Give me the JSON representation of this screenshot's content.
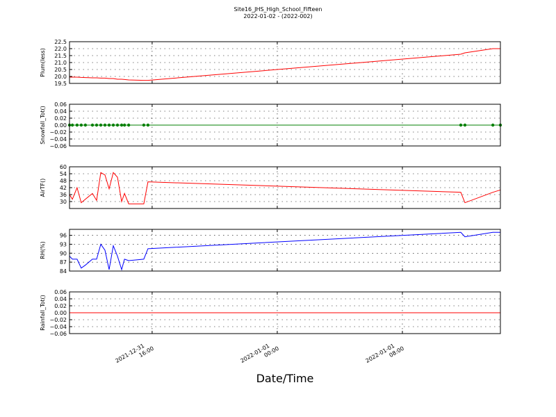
{
  "chart_data": [
    {
      "type": "line",
      "title": "Site16_JHS_High_School_Fifteen",
      "subtitle": "2022-01-02 - (2022-002)",
      "ylabel": "Plum(less)",
      "color": "#ff0000",
      "grid": true,
      "x": [
        "2021-12-31 10:43",
        "2021-12-31 10:54",
        "2021-12-31 11:12",
        "2021-12-31 11:28",
        "2021-12-31 11:44",
        "2021-12-31 12:11",
        "2021-12-31 12:27",
        "2021-12-31 12:43",
        "2021-12-31 12:59",
        "2021-12-31 13:15",
        "2021-12-31 13:31",
        "2021-12-31 13:47",
        "2021-12-31 14:03",
        "2021-12-31 14:14",
        "2021-12-31 14:30",
        "2021-12-31 15:28",
        "2021-12-31 15:44",
        "2022-01-01 11:44",
        "2022-01-01 12:00",
        "2022-01-01 13:47",
        "2022-01-01 14:16"
      ],
      "values": [
        19.95,
        19.95,
        19.95,
        19.93,
        19.92,
        19.9,
        19.9,
        19.88,
        19.88,
        19.85,
        19.85,
        19.8,
        19.8,
        19.78,
        19.75,
        19.72,
        19.72,
        21.6,
        21.7,
        22.0,
        22.0
      ],
      "xlim": [
        "2021-12-31 10:43",
        "2022-01-01 14:16"
      ],
      "xticks": [
        "2021-12-31 16:00",
        "2022-01-01 00:00",
        "2022-01-01 08:00"
      ],
      "ylim": [
        19.5,
        22.5
      ],
      "yticks": [
        19.5,
        {
          "value": 20,
          "label": "20.0"
        },
        20.5,
        {
          "value": 21,
          "label": "21.0"
        },
        21.5,
        {
          "value": 22,
          "label": "22.0"
        },
        22.5
      ]
    },
    {
      "type": "line",
      "ylabel": "Snowfall_Tot()",
      "color": "#007f00",
      "markers": true,
      "grid": true,
      "x": [
        "2021-12-31 10:43",
        "2021-12-31 10:54",
        "2021-12-31 11:12",
        "2021-12-31 11:28",
        "2021-12-31 11:44",
        "2021-12-31 12:11",
        "2021-12-31 12:27",
        "2021-12-31 12:43",
        "2021-12-31 12:59",
        "2021-12-31 13:15",
        "2021-12-31 13:31",
        "2021-12-31 13:47",
        "2021-12-31 14:03",
        "2021-12-31 14:14",
        "2021-12-31 14:30",
        "2021-12-31 15:28",
        "2021-12-31 15:44",
        "2022-01-01 11:44",
        "2022-01-01 12:00",
        "2022-01-01 13:47",
        "2022-01-01 14:16"
      ],
      "values": [
        0,
        0,
        0,
        0,
        0,
        0,
        0,
        0,
        0,
        0,
        0,
        0,
        0,
        0,
        0,
        0,
        0,
        0,
        0,
        0,
        0
      ],
      "xlim": [
        "2021-12-31 10:43",
        "2022-01-01 14:16"
      ],
      "xticks": [
        "2021-12-31 16:00",
        "2022-01-01 00:00",
        "2022-01-01 08:00"
      ],
      "ylim": [
        -0.06,
        0.06
      ],
      "yticks": [
        {
          "value": -0.06,
          "label": "−0.06"
        },
        {
          "value": -0.04,
          "label": "−0.04"
        },
        {
          "value": -0.02,
          "label": "−0.02"
        },
        {
          "value": 0,
          "label": "0.00"
        },
        0.02,
        0.04,
        0.06
      ]
    },
    {
      "type": "line",
      "ylabel": "AirTF()",
      "color": "#ff0000",
      "grid": true,
      "x": [
        "2021-12-31 10:43",
        "2021-12-31 10:54",
        "2021-12-31 11:12",
        "2021-12-31 11:28",
        "2021-12-31 11:44",
        "2021-12-31 12:11",
        "2021-12-31 12:27",
        "2021-12-31 12:43",
        "2021-12-31 12:59",
        "2021-12-31 13:15",
        "2021-12-31 13:31",
        "2021-12-31 13:47",
        "2021-12-31 14:03",
        "2021-12-31 14:14",
        "2021-12-31 14:30",
        "2021-12-31 15:28",
        "2021-12-31 15:44",
        "2022-01-01 11:44",
        "2022-01-01 12:00",
        "2022-01-01 13:47",
        "2022-01-01 14:16"
      ],
      "values": [
        36,
        32,
        42,
        29,
        32,
        37,
        31,
        55,
        53,
        41,
        55,
        51,
        30,
        37,
        28,
        28,
        47,
        38,
        29,
        38,
        40
      ],
      "xlim": [
        "2021-12-31 10:43",
        "2022-01-01 14:16"
      ],
      "xticks": [
        "2021-12-31 16:00",
        "2022-01-01 00:00",
        "2022-01-01 08:00"
      ],
      "ylim": [
        24,
        60
      ],
      "yticks": [
        30,
        36,
        42,
        48,
        54,
        60
      ]
    },
    {
      "type": "line",
      "ylabel": "RH(%)",
      "color": "#0000ff",
      "grid": true,
      "x": [
        "2021-12-31 10:43",
        "2021-12-31 10:54",
        "2021-12-31 11:12",
        "2021-12-31 11:28",
        "2021-12-31 11:44",
        "2021-12-31 12:11",
        "2021-12-31 12:27",
        "2021-12-31 12:43",
        "2021-12-31 12:59",
        "2021-12-31 13:15",
        "2021-12-31 13:31",
        "2021-12-31 13:47",
        "2021-12-31 14:03",
        "2021-12-31 14:14",
        "2021-12-31 14:30",
        "2021-12-31 15:28",
        "2021-12-31 15:44",
        "2022-01-01 11:44",
        "2022-01-01 12:00",
        "2022-01-01 13:47",
        "2022-01-01 14:16"
      ],
      "values": [
        89,
        88,
        88,
        85,
        86,
        88,
        88,
        93,
        91,
        84.5,
        92.5,
        89,
        84.5,
        88,
        87.5,
        88,
        91.5,
        97,
        95.5,
        97,
        97
      ],
      "xlim": [
        "2021-12-31 10:43",
        "2022-01-01 14:16"
      ],
      "xticks": [
        "2021-12-31 16:00",
        "2022-01-01 00:00",
        "2022-01-01 08:00"
      ],
      "ylim": [
        84,
        98
      ],
      "yticks": [
        84,
        87,
        90,
        93,
        96
      ]
    },
    {
      "type": "line",
      "ylabel": "Rainfall_Tot()",
      "xlabel": "Date/Time",
      "color": "#ff0000",
      "grid": true,
      "x": [
        "2021-12-31 10:43",
        "2021-12-31 10:54",
        "2021-12-31 11:12",
        "2021-12-31 11:28",
        "2021-12-31 11:44",
        "2021-12-31 12:11",
        "2021-12-31 12:27",
        "2021-12-31 12:43",
        "2021-12-31 12:59",
        "2021-12-31 13:15",
        "2021-12-31 13:31",
        "2021-12-31 13:47",
        "2021-12-31 14:03",
        "2021-12-31 14:14",
        "2021-12-31 14:30",
        "2021-12-31 15:28",
        "2021-12-31 15:44",
        "2022-01-01 11:44",
        "2022-01-01 12:00",
        "2022-01-01 13:47",
        "2022-01-01 14:16"
      ],
      "values": [
        0,
        0,
        0,
        0,
        0,
        0,
        0,
        0,
        0,
        0,
        0,
        0,
        0,
        0,
        0,
        0,
        0,
        0,
        0,
        0,
        0
      ],
      "xlim": [
        "2021-12-31 10:43",
        "2022-01-01 14:16"
      ],
      "xticks": [
        "2021-12-31 16:00",
        "2022-01-01 00:00",
        "2022-01-01 08:00"
      ],
      "ylim": [
        -0.06,
        0.06
      ],
      "yticks": [
        {
          "value": -0.06,
          "label": "−0.06"
        },
        {
          "value": -0.04,
          "label": "−0.04"
        },
        {
          "value": -0.02,
          "label": "−0.02"
        },
        {
          "value": 0,
          "label": "0.00"
        },
        0.02,
        0.04,
        0.06
      ]
    }
  ]
}
